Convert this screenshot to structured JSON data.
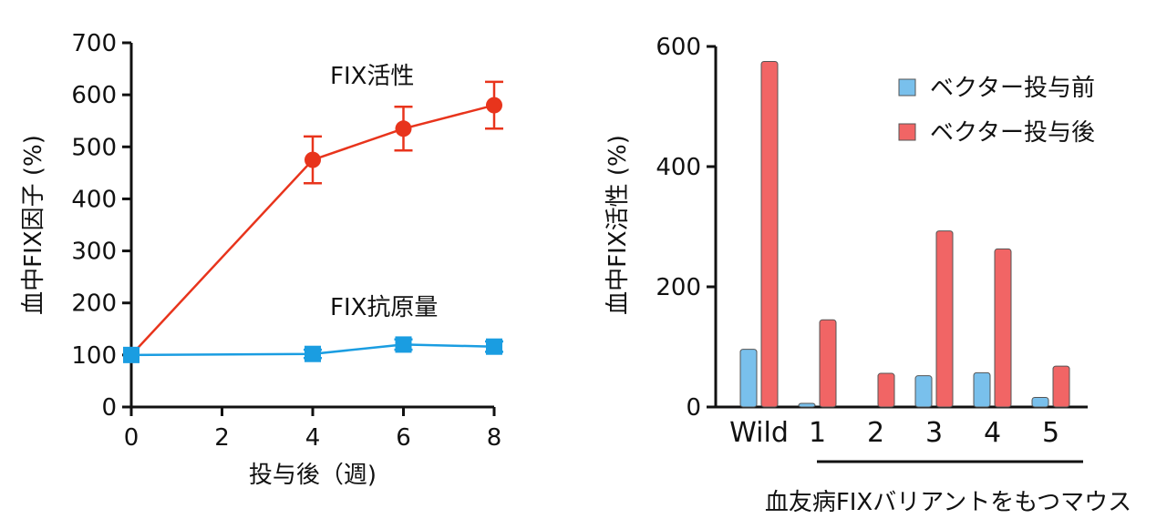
{
  "chart_data": [
    {
      "type": "line",
      "xlabel": "投与後（週)",
      "ylabel": "血中FIX因子 (%)",
      "xlim": [
        0,
        8
      ],
      "ylim": [
        0,
        700
      ],
      "xticks": [
        0,
        2,
        4,
        6,
        8
      ],
      "yticks": [
        0,
        100,
        200,
        300,
        400,
        500,
        600,
        700
      ],
      "grid": false,
      "series": [
        {
          "name": "FIX活性",
          "color": "#e8341c",
          "marker": "circle",
          "x": [
            0,
            4,
            6,
            8
          ],
          "y": [
            100,
            475,
            535,
            580
          ],
          "err": [
            0,
            45,
            42,
            45
          ]
        },
        {
          "name": "FIX抗原量",
          "color": "#1a9de1",
          "marker": "square",
          "x": [
            0,
            4,
            6,
            8
          ],
          "y": [
            100,
            102,
            120,
            116
          ],
          "err": [
            0,
            8,
            10,
            10
          ]
        }
      ]
    },
    {
      "type": "bar",
      "xlabel": "血友病FIXバリアントをもつマウス",
      "ylabel": "血中FIX活性 (%)",
      "ylim": [
        0,
        600
      ],
      "yticks": [
        0,
        200,
        400,
        600
      ],
      "grid": false,
      "legend_position": "top-right",
      "categories": [
        "Wild",
        "1",
        "2",
        "3",
        "4",
        "5"
      ],
      "series": [
        {
          "name": "ベクター投与前",
          "color": "#79c0ec",
          "values": [
            96,
            6,
            0,
            52,
            57,
            16
          ]
        },
        {
          "name": "ベクター投与後",
          "color": "#f16565",
          "values": [
            575,
            145,
            56,
            293,
            263,
            68
          ]
        }
      ]
    }
  ]
}
